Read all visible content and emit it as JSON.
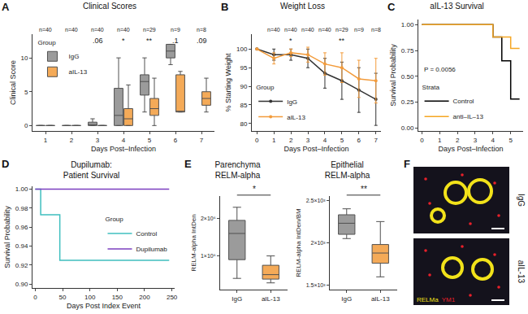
{
  "chart_data": [
    {
      "panel": "A",
      "type": "grouped_box",
      "title": "Clinical Scores",
      "x_label": "Days Post–Infection",
      "y_label": "Clinical Score",
      "legend_title": "Group",
      "legend": "upper left",
      "grid": false,
      "x": [
        1,
        2,
        3,
        4,
        5,
        6,
        7
      ],
      "xlim": [
        0.5,
        7.5
      ],
      "xticks": [
        1,
        2,
        3,
        4,
        5,
        6,
        7
      ],
      "ylim": [
        -0.8,
        13.5
      ],
      "yticks": [
        0,
        5,
        10
      ],
      "n_labels": [
        "n=40",
        "n=40",
        "n=40",
        "n=40",
        "n=29",
        "n=9",
        "n=8"
      ],
      "significance": [
        null,
        null,
        ".06",
        "*",
        "**",
        ".1",
        ".09"
      ],
      "series": [
        {
          "name": "IgG",
          "color": "#8a8a8a",
          "q1": [
            0,
            0,
            0,
            0,
            4.5,
            10,
            null
          ],
          "median": [
            0,
            0,
            0,
            1.5,
            6.5,
            11,
            null
          ],
          "q3": [
            0,
            0,
            0.5,
            5.5,
            7.5,
            12,
            null
          ],
          "lowerfence": [
            0,
            0,
            0,
            0,
            2,
            9,
            null
          ],
          "upperfence": [
            0,
            0,
            1,
            10,
            10,
            12,
            null
          ]
        },
        {
          "name": "aIL-13",
          "color": "#f39c3c",
          "q1": [
            0,
            0,
            0,
            0,
            1.5,
            2,
            3
          ],
          "median": [
            0,
            0,
            0,
            1,
            2.5,
            2,
            4
          ],
          "q3": [
            0,
            0,
            0,
            2.5,
            4,
            7.5,
            5
          ],
          "lowerfence": [
            0,
            0,
            0,
            0,
            0,
            2,
            2
          ],
          "upperfence": [
            0,
            0,
            0,
            6,
            7,
            8,
            7
          ]
        }
      ]
    },
    {
      "panel": "B",
      "type": "line",
      "title": "Weight Loss",
      "x_label": "Days Post–Infection",
      "y_label": "% Starting Weight",
      "legend_title": "Group",
      "legend": "lower left",
      "grid": false,
      "x": [
        0,
        1,
        2,
        3,
        4,
        5,
        6,
        7
      ],
      "xlim": [
        -0.3,
        7.3
      ],
      "xticks": [
        0,
        1,
        2,
        3,
        4,
        5,
        6,
        7
      ],
      "ylim": [
        78,
        104
      ],
      "yticks": [
        80,
        85,
        90,
        95,
        100
      ],
      "n_labels": [
        null,
        "n=40",
        "n=40",
        "n=40",
        "n=40",
        "n=29",
        "n=9",
        "n=8"
      ],
      "significance": [
        null,
        null,
        "*",
        null,
        null,
        "**",
        null,
        null
      ],
      "series": [
        {
          "name": "IgG",
          "color": "#333333",
          "values": [
            100,
            98.5,
            98.5,
            97.5,
            93.5,
            91.5,
            89,
            86.5
          ],
          "error": [
            0,
            1.5,
            1.5,
            2.5,
            4,
            5,
            6,
            7
          ]
        },
        {
          "name": "aIL-13",
          "color": "#f39c3c",
          "values": [
            100,
            97.5,
            99,
            98.5,
            96,
            95,
            92,
            91.5
          ],
          "error": [
            0,
            1.5,
            1,
            2,
            3,
            4,
            5,
            6
          ]
        }
      ]
    },
    {
      "panel": "C",
      "type": "step",
      "title": "aIL-13 Survival",
      "x_label": "Days Post–Infection",
      "y_label": "Survival Probability",
      "legend_title": "Strata",
      "legend": "lower left",
      "grid": false,
      "xlim": [
        -0.2,
        5.7
      ],
      "xticks": [
        0,
        1,
        2,
        3,
        4,
        5
      ],
      "ylim": [
        -0.03,
        1.05
      ],
      "yticks": [
        {
          "value": 0,
          "label": "0.00"
        },
        {
          "value": 0.25,
          "label": "0.25"
        },
        {
          "value": 0.5,
          "label": "0.50"
        },
        {
          "value": 0.75,
          "label": "0.75"
        },
        {
          "value": 1,
          "label": "1.00"
        }
      ],
      "annotation": "P = 0.0056",
      "series": [
        {
          "name": "Control",
          "color": "#000000",
          "x": [
            0,
            4,
            4.5,
            5,
            5.5
          ],
          "values": [
            1,
            0.88,
            0.65,
            0.28,
            0.28
          ]
        },
        {
          "name": "anti–IL–13",
          "color": "#f5a623",
          "x": [
            0,
            4,
            5,
            5.5
          ],
          "values": [
            1,
            0.88,
            0.77,
            0.77
          ]
        }
      ]
    },
    {
      "panel": "D",
      "type": "step",
      "title_lines": [
        "Dupilumab:",
        "Patient Survival"
      ],
      "x_label": "Days Post Index Event",
      "y_label": "Survival Probability",
      "legend_title": "Group",
      "legend": "right",
      "grid": false,
      "xlim": [
        -5,
        255
      ],
      "xticks": [
        0,
        50,
        100,
        150,
        200,
        250
      ],
      "ylim": [
        0.896,
        1.003
      ],
      "yticks": [
        {
          "value": 0.9,
          "label": "0.90"
        },
        {
          "value": 0.92,
          "label": "0.92"
        },
        {
          "value": 0.94,
          "label": "0.94"
        },
        {
          "value": 0.96,
          "label": "0.96"
        },
        {
          "value": 0.98,
          "label": "0.98"
        },
        {
          "value": 1,
          "label": "1.00"
        }
      ],
      "series": [
        {
          "name": "Control",
          "color": "#3fbfbf",
          "x": [
            0,
            10,
            45,
            245
          ],
          "values": [
            1,
            0.973,
            0.925,
            0.925
          ]
        },
        {
          "name": "Dupilumab",
          "color": "#7b3fbf",
          "x": [
            0,
            245
          ],
          "values": [
            1,
            1
          ]
        }
      ]
    },
    {
      "panel": "E",
      "type": "box",
      "title_lines": [
        "Parenchyma",
        "RELM-alpha"
      ],
      "y_label": "RELM-alpha IntDen",
      "grid": false,
      "categories": [
        "IgG",
        "aIL-13"
      ],
      "colors": [
        "#8a8a8a",
        "#f39c3c"
      ],
      "ylim": [
        100000,
        2600000
      ],
      "yticks": [
        {
          "value": 1000000,
          "label": "1×10⁶"
        },
        {
          "value": 2000000,
          "label": "2×10⁶"
        }
      ],
      "significance": "*",
      "q1": [
        900000,
        380000
      ],
      "median": [
        1600000,
        500000
      ],
      "q3": [
        1950000,
        750000
      ],
      "lowerfence": [
        400000,
        280000
      ],
      "upperfence": [
        2300000,
        1000000
      ]
    },
    {
      "type": "box",
      "title_lines": [
        "Epithelial",
        "RELM-alpha"
      ],
      "y_label": "RELM-alpha IntDen/BM",
      "grid": false,
      "categories": [
        "IgG",
        "aIL-13"
      ],
      "colors": [
        "#8a8a8a",
        "#f39c3c"
      ],
      "ylim": [
        1450,
        2550
      ],
      "yticks": [
        {
          "value": 1500,
          "label": "1.5×10³"
        },
        {
          "value": 2000,
          "label": "2×10³"
        },
        {
          "value": 2500,
          "label": "2.5×10³"
        }
      ],
      "significance": "**",
      "q1": [
        2100,
        1760
      ],
      "median": [
        2230,
        1880
      ],
      "q3": [
        2330,
        1980
      ],
      "lowerfence": [
        2050,
        1600
      ],
      "upperfence": [
        2400,
        2250
      ]
    }
  ],
  "image_panel": {
    "panel": "F",
    "labels": [
      "IgG",
      "aIL-13"
    ],
    "stain_labels": [
      {
        "text": "RELMa",
        "color": "#f2e21a"
      },
      {
        "text": "YM1",
        "color": "#e8202a"
      }
    ]
  }
}
